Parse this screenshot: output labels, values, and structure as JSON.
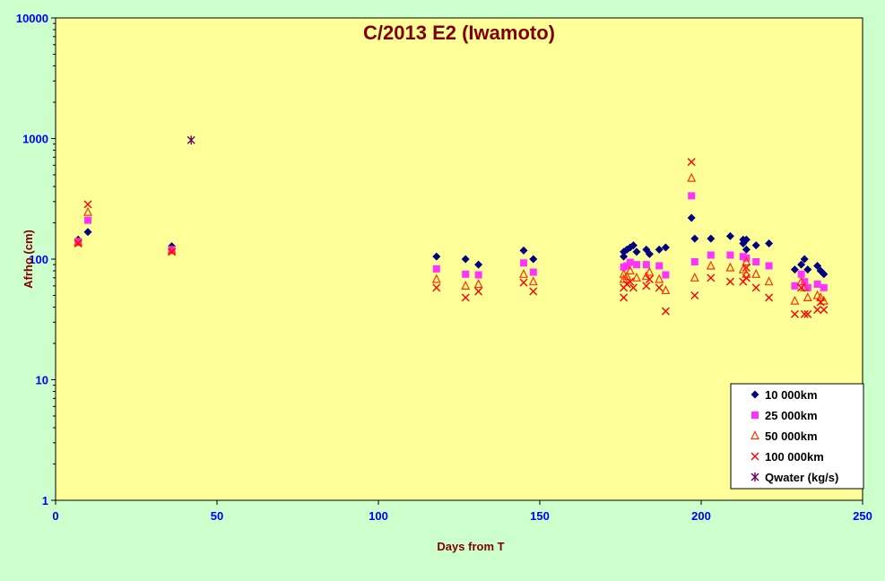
{
  "chart_data": {
    "type": "scatter",
    "title": "C/2013 E2 (Iwamoto)",
    "xlabel": "Days  from  T",
    "ylabel": "Afrho (cm)",
    "xlim": [
      0,
      250
    ],
    "ylim": [
      1,
      10000
    ],
    "yscale": "log",
    "x_ticks": [
      0,
      50,
      100,
      150,
      200,
      250
    ],
    "y_ticks": [
      1,
      10,
      100,
      1000,
      10000
    ],
    "grid": false,
    "legend_position": "bottom-right",
    "colors": {
      "background": "#ccffcc",
      "plot_area": "#ffff99",
      "title": "#800000",
      "axis_label": "#800000",
      "tick_label": "#0000ff"
    },
    "series": [
      {
        "name": "10 000km",
        "marker": "diamond",
        "color": "#000080",
        "points": [
          [
            7,
            145
          ],
          [
            10,
            168
          ],
          [
            36,
            128
          ],
          [
            118,
            105
          ],
          [
            127,
            100
          ],
          [
            131,
            90
          ],
          [
            145,
            118
          ],
          [
            148,
            100
          ],
          [
            176,
            105
          ],
          [
            176,
            115
          ],
          [
            177,
            120
          ],
          [
            178,
            125
          ],
          [
            179,
            130
          ],
          [
            180,
            115
          ],
          [
            183,
            120
          ],
          [
            184,
            110
          ],
          [
            187,
            120
          ],
          [
            189,
            125
          ],
          [
            197,
            220
          ],
          [
            198,
            148
          ],
          [
            203,
            148
          ],
          [
            209,
            155
          ],
          [
            213,
            145
          ],
          [
            213,
            135
          ],
          [
            214,
            145
          ],
          [
            214,
            120
          ],
          [
            217,
            130
          ],
          [
            221,
            135
          ],
          [
            229,
            82
          ],
          [
            231,
            90
          ],
          [
            232,
            100
          ],
          [
            233,
            82
          ],
          [
            236,
            88
          ],
          [
            237,
            80
          ],
          [
            238,
            75
          ]
        ]
      },
      {
        "name": "25 000km",
        "marker": "square",
        "color": "#ff33ff",
        "points": [
          [
            7,
            140
          ],
          [
            10,
            210
          ],
          [
            36,
            120
          ],
          [
            118,
            83
          ],
          [
            127,
            75
          ],
          [
            131,
            74
          ],
          [
            145,
            93
          ],
          [
            148,
            78
          ],
          [
            176,
            86
          ],
          [
            177,
            88
          ],
          [
            178,
            94
          ],
          [
            180,
            90
          ],
          [
            183,
            90
          ],
          [
            187,
            88
          ],
          [
            189,
            74
          ],
          [
            197,
            335
          ],
          [
            198,
            95
          ],
          [
            203,
            108
          ],
          [
            209,
            108
          ],
          [
            213,
            105
          ],
          [
            214,
            102
          ],
          [
            217,
            95
          ],
          [
            221,
            88
          ],
          [
            229,
            60
          ],
          [
            231,
            75
          ],
          [
            232,
            65
          ],
          [
            233,
            58
          ],
          [
            236,
            62
          ],
          [
            238,
            58
          ]
        ]
      },
      {
        "name": "50 000km",
        "marker": "triangle",
        "color": "#ff3300",
        "points": [
          [
            7,
            138
          ],
          [
            10,
            245
          ],
          [
            36,
            118
          ],
          [
            118,
            68
          ],
          [
            127,
            60
          ],
          [
            131,
            62
          ],
          [
            145,
            75
          ],
          [
            148,
            65
          ],
          [
            176,
            75
          ],
          [
            176,
            68
          ],
          [
            177,
            72
          ],
          [
            178,
            80
          ],
          [
            180,
            70
          ],
          [
            183,
            72
          ],
          [
            184,
            78
          ],
          [
            187,
            68
          ],
          [
            189,
            55
          ],
          [
            197,
            470
          ],
          [
            198,
            70
          ],
          [
            203,
            88
          ],
          [
            209,
            85
          ],
          [
            213,
            82
          ],
          [
            214,
            95
          ],
          [
            214,
            75
          ],
          [
            217,
            75
          ],
          [
            221,
            65
          ],
          [
            229,
            45
          ],
          [
            231,
            65
          ],
          [
            232,
            58
          ],
          [
            233,
            48
          ],
          [
            236,
            50
          ],
          [
            237,
            48
          ],
          [
            238,
            45
          ]
        ]
      },
      {
        "name": "100 000km",
        "marker": "x",
        "color": "#ff0000",
        "points": [
          [
            7,
            135
          ],
          [
            10,
            285
          ],
          [
            36,
            115
          ],
          [
            118,
            58
          ],
          [
            127,
            48
          ],
          [
            131,
            54
          ],
          [
            145,
            64
          ],
          [
            148,
            54
          ],
          [
            176,
            58
          ],
          [
            176,
            48
          ],
          [
            177,
            62
          ],
          [
            178,
            65
          ],
          [
            179,
            58
          ],
          [
            183,
            60
          ],
          [
            184,
            68
          ],
          [
            187,
            58
          ],
          [
            189,
            37
          ],
          [
            197,
            640
          ],
          [
            198,
            50
          ],
          [
            203,
            70
          ],
          [
            209,
            65
          ],
          [
            213,
            65
          ],
          [
            214,
            85
          ],
          [
            214,
            70
          ],
          [
            217,
            58
          ],
          [
            221,
            48
          ],
          [
            229,
            35
          ],
          [
            231,
            58
          ],
          [
            232,
            35
          ],
          [
            233,
            35
          ],
          [
            236,
            38
          ],
          [
            237,
            44
          ],
          [
            238,
            38
          ]
        ]
      },
      {
        "name": "Qwater (kg/s)",
        "marker": "star",
        "color": "#660066",
        "points": [
          [
            42,
            970
          ]
        ]
      }
    ]
  }
}
